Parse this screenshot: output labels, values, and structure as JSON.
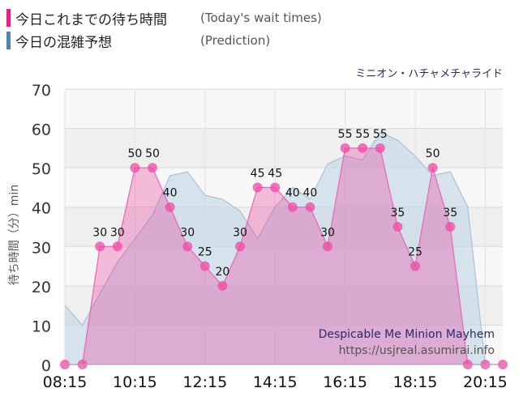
{
  "legend": {
    "actual": {
      "title": "今日これまでの待ち時間",
      "subtitle": "(Today's wait times)",
      "color": "#ee1b8f"
    },
    "prediction": {
      "title": "今日の混雑予想",
      "subtitle": "(Prediction)",
      "color": "#4f86b0"
    }
  },
  "ride_name_jp": "ミニオン・ハチャメチャライド",
  "credit": {
    "name": "Despicable Me Minion Mayhem",
    "url": "https://usjreal.asumirai.info"
  },
  "chart_data": {
    "type": "area",
    "ylabel": "待ち時間（分）min",
    "ylim": [
      0,
      70
    ],
    "yticks": [
      0,
      10,
      20,
      30,
      40,
      50,
      60,
      70
    ],
    "xlim": [
      "08:15",
      "20:45"
    ],
    "xticks": [
      "08:15",
      "10:15",
      "12:15",
      "14:15",
      "16:15",
      "18:15",
      "20:15"
    ],
    "series": [
      {
        "name": "今日これまでの待ち時間",
        "color": "#ee1b8f",
        "points": [
          {
            "x": "08:15",
            "y": 0
          },
          {
            "x": "08:45",
            "y": 0
          },
          {
            "x": "09:15",
            "y": 30
          },
          {
            "x": "09:45",
            "y": 30
          },
          {
            "x": "10:15",
            "y": 50
          },
          {
            "x": "10:45",
            "y": 50
          },
          {
            "x": "11:15",
            "y": 40
          },
          {
            "x": "11:45",
            "y": 30
          },
          {
            "x": "12:15",
            "y": 25
          },
          {
            "x": "12:45",
            "y": 20
          },
          {
            "x": "13:15",
            "y": 30
          },
          {
            "x": "13:45",
            "y": 45
          },
          {
            "x": "14:15",
            "y": 45
          },
          {
            "x": "14:45",
            "y": 40
          },
          {
            "x": "15:15",
            "y": 40
          },
          {
            "x": "15:45",
            "y": 30
          },
          {
            "x": "16:15",
            "y": 55
          },
          {
            "x": "16:45",
            "y": 55
          },
          {
            "x": "17:15",
            "y": 55
          },
          {
            "x": "17:45",
            "y": 35
          },
          {
            "x": "18:15",
            "y": 25
          },
          {
            "x": "18:45",
            "y": 50
          },
          {
            "x": "19:15",
            "y": 35
          },
          {
            "x": "19:45",
            "y": 0
          },
          {
            "x": "20:15",
            "y": 0
          },
          {
            "x": "20:45",
            "y": 0
          }
        ]
      },
      {
        "name": "今日の混雑予想",
        "color": "#4f86b0",
        "points": [
          {
            "x": "08:15",
            "y": 15
          },
          {
            "x": "08:45",
            "y": 10
          },
          {
            "x": "09:15",
            "y": 18
          },
          {
            "x": "09:45",
            "y": 26
          },
          {
            "x": "10:15",
            "y": 32
          },
          {
            "x": "10:45",
            "y": 38
          },
          {
            "x": "11:15",
            "y": 48
          },
          {
            "x": "11:45",
            "y": 49
          },
          {
            "x": "12:15",
            "y": 43
          },
          {
            "x": "12:45",
            "y": 42
          },
          {
            "x": "13:15",
            "y": 39
          },
          {
            "x": "13:45",
            "y": 32
          },
          {
            "x": "14:15",
            "y": 40
          },
          {
            "x": "14:45",
            "y": 45
          },
          {
            "x": "15:15",
            "y": 42
          },
          {
            "x": "15:45",
            "y": 51
          },
          {
            "x": "16:15",
            "y": 53
          },
          {
            "x": "16:45",
            "y": 52
          },
          {
            "x": "17:15",
            "y": 59
          },
          {
            "x": "17:45",
            "y": 57
          },
          {
            "x": "18:15",
            "y": 53
          },
          {
            "x": "18:45",
            "y": 48
          },
          {
            "x": "19:15",
            "y": 49
          },
          {
            "x": "19:45",
            "y": 40
          },
          {
            "x": "20:15",
            "y": 0
          }
        ]
      }
    ],
    "grid": true
  }
}
